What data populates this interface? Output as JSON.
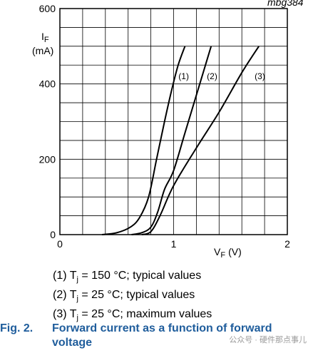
{
  "chart_data": {
    "type": "line",
    "title": "",
    "corner_label": "mbg384",
    "xlabel_main": "V",
    "xlabel_sub": "F",
    "xlabel_unit": "(V)",
    "ylabel_main": "I",
    "ylabel_sub": "F",
    "ylabel_unit": "(mA)",
    "xlim": [
      0,
      2
    ],
    "ylim": [
      0,
      600
    ],
    "x_ticks": [
      "0",
      "1",
      "2"
    ],
    "y_ticks": [
      "0",
      "200",
      "400",
      "600"
    ],
    "grid": true,
    "series": [
      {
        "name": "(1)",
        "points": [
          [
            0.37,
            0
          ],
          [
            0.5,
            5
          ],
          [
            0.62,
            20
          ],
          [
            0.7,
            45
          ],
          [
            0.78,
            100
          ],
          [
            0.85,
            200
          ],
          [
            0.92,
            300
          ],
          [
            0.98,
            380
          ],
          [
            1.04,
            450
          ],
          [
            1.1,
            500
          ]
        ]
      },
      {
        "name": "(2)",
        "points": [
          [
            0.63,
            0
          ],
          [
            0.72,
            5
          ],
          [
            0.8,
            20
          ],
          [
            0.86,
            60
          ],
          [
            0.92,
            120
          ],
          [
            1.0,
            170
          ],
          [
            1.1,
            270
          ],
          [
            1.22,
            390
          ],
          [
            1.33,
            500
          ]
        ]
      },
      {
        "name": "(3)",
        "points": [
          [
            0.72,
            0
          ],
          [
            0.8,
            8
          ],
          [
            0.88,
            50
          ],
          [
            1.0,
            130
          ],
          [
            1.2,
            230
          ],
          [
            1.4,
            325
          ],
          [
            1.6,
            430
          ],
          [
            1.75,
            500
          ]
        ]
      }
    ],
    "legend": [
      {
        "prefix": "(1) T",
        "sub": "j",
        "text": " = 150 °C; typical values"
      },
      {
        "prefix": "(2) T",
        "sub": "j",
        "text": " = 25 °C; typical values"
      },
      {
        "prefix": "(3) T",
        "sub": "j",
        "text": " = 25 °C; maximum values"
      }
    ]
  },
  "caption": {
    "figure_number": "Fig. 2.",
    "title": "Forward current as a function of forward voltage"
  },
  "watermark": "公众号 · 硬件那点事儿"
}
